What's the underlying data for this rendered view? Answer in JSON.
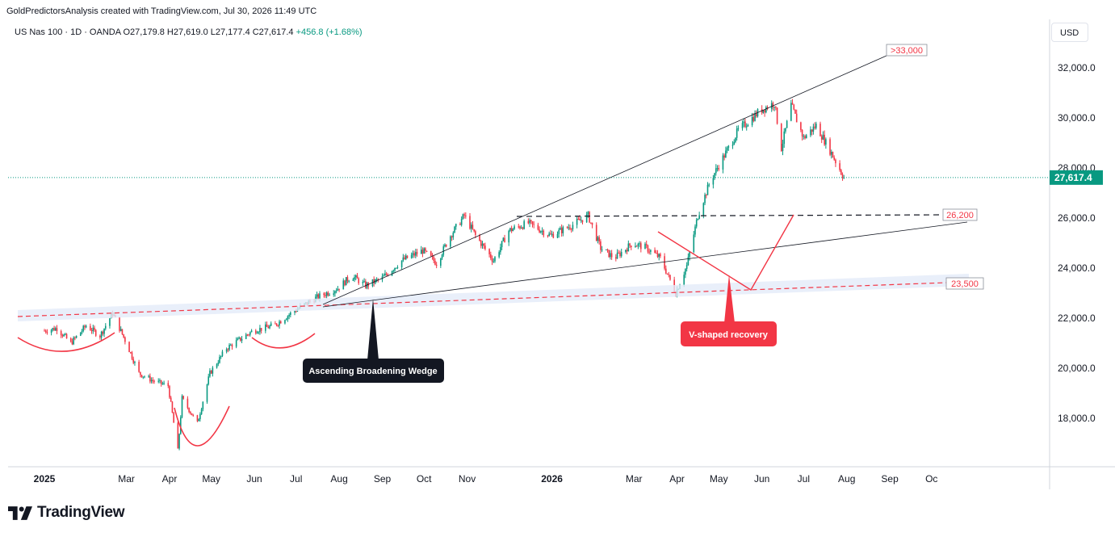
{
  "header": {
    "attribution": "GoldPredictorsAnalysis created with TradingView.com, Jul 30, 2026 11:49 UTC"
  },
  "legend": {
    "symbol": "US Nas 100 · 1D · OANDA",
    "ohlc": "O27,179.8  H27,619.0  L27,177.4  C27,617.4",
    "change": "+456.8 (+1.68%)"
  },
  "currency": "USD",
  "footer": {
    "brand": "TradingView"
  },
  "colors": {
    "up": "#089981",
    "down": "#f23645",
    "accent_red": "#f23645",
    "label_dark": "#131722",
    "current_price_bg": "#089981"
  },
  "chart_data": {
    "type": "candlestick",
    "x_axis_labels": [
      "2025",
      "Mar",
      "Apr",
      "May",
      "Jun",
      "Jul",
      "Aug",
      "Sep",
      "Oct",
      "Nov",
      "2026",
      "Mar",
      "Apr",
      "May",
      "Jun",
      "Jul",
      "Aug",
      "Sep",
      "Oc"
    ],
    "y_axis_labels": [
      "32,000.0",
      "30,000.0",
      "28,000.0",
      "26,000.0",
      "24,000.0",
      "22,000.0",
      "20,000.0",
      "18,000.0"
    ],
    "y_ticks": [
      32000,
      30000,
      28000,
      26000,
      24000,
      22000,
      20000,
      18000
    ],
    "ylim": [
      16200,
      34000
    ],
    "current_price": 27617.4,
    "current_price_label": "27,617.4",
    "price_path": [
      [
        "2025-01-01",
        21500
      ],
      [
        "2025-01-10",
        21600
      ],
      [
        "2025-01-20",
        21000
      ],
      [
        "2025-01-31",
        21700
      ],
      [
        "2025-02-10",
        21300
      ],
      [
        "2025-02-19",
        22200
      ],
      [
        "2025-03-01",
        21000
      ],
      [
        "2025-03-10",
        19800
      ],
      [
        "2025-03-20",
        19500
      ],
      [
        "2025-03-31",
        19300
      ],
      [
        "2025-04-07",
        16700
      ],
      [
        "2025-04-10",
        18800
      ],
      [
        "2025-04-21",
        17800
      ],
      [
        "2025-04-30",
        19800
      ],
      [
        "2025-05-12",
        20800
      ],
      [
        "2025-05-31",
        21500
      ],
      [
        "2025-06-15",
        21700
      ],
      [
        "2025-06-30",
        22300
      ],
      [
        "2025-07-15",
        22800
      ],
      [
        "2025-07-31",
        23200
      ],
      [
        "2025-08-10",
        23700
      ],
      [
        "2025-08-20",
        23300
      ],
      [
        "2025-09-01",
        23600
      ],
      [
        "2025-09-15",
        24300
      ],
      [
        "2025-09-30",
        24700
      ],
      [
        "2025-10-10",
        24200
      ],
      [
        "2025-10-20",
        25300
      ],
      [
        "2025-10-30",
        26100
      ],
      [
        "2025-11-07",
        25300
      ],
      [
        "2025-11-20",
        24300
      ],
      [
        "2025-12-01",
        25500
      ],
      [
        "2025-12-15",
        25800
      ],
      [
        "2025-12-31",
        25300
      ],
      [
        "2026-01-15",
        25700
      ],
      [
        "2026-01-27",
        26100
      ],
      [
        "2026-02-05",
        24800
      ],
      [
        "2026-02-15",
        24400
      ],
      [
        "2026-02-28",
        25000
      ],
      [
        "2026-03-10",
        24800
      ],
      [
        "2026-03-20",
        24400
      ],
      [
        "2026-03-31",
        23000
      ],
      [
        "2026-04-08",
        24100
      ],
      [
        "2026-04-16",
        26100
      ],
      [
        "2026-04-25",
        27500
      ],
      [
        "2026-05-05",
        28500
      ],
      [
        "2026-05-15",
        29500
      ],
      [
        "2026-05-31",
        30300
      ],
      [
        "2026-06-10",
        30600
      ],
      [
        "2026-06-15",
        28800
      ],
      [
        "2026-06-22",
        30500
      ],
      [
        "2026-07-01",
        29200
      ],
      [
        "2026-07-10",
        29700
      ],
      [
        "2026-07-20",
        28700
      ],
      [
        "2026-07-30",
        27617
      ]
    ],
    "levels": [
      {
        "label": ">33,000",
        "value": 33000
      },
      {
        "label": "26,200",
        "value": 26200
      },
      {
        "label": "23,500",
        "value": 23500
      }
    ],
    "annotations": [
      {
        "text": "Ascending Broadening Wedge",
        "date": "2025-08-01",
        "value": 22700
      },
      {
        "text": "V-shaped recovery",
        "date": "2026-03-26",
        "value": 23700
      }
    ],
    "grid": false,
    "legend_position": "top-left"
  }
}
